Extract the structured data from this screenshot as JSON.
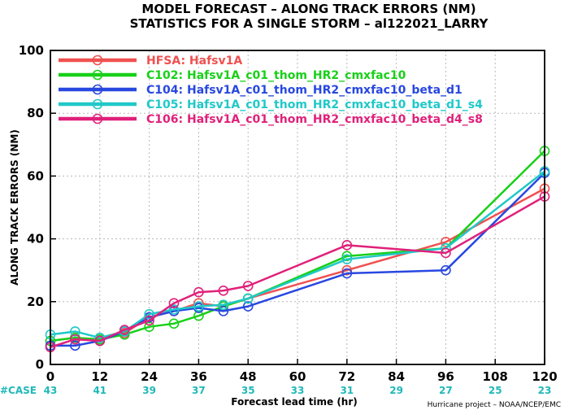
{
  "chart_data": {
    "type": "line",
    "title_line1": "MODEL FORECAST – ALONG TRACK ERRORS (NM)",
    "title_line2": "STATISTICS FOR A SINGLE STORM – al122021_LARRY",
    "xlabel": "Forecast lead time (hr)",
    "ylabel": "ALONG TRACK ERRORS (NM)",
    "xlim": [
      0,
      120
    ],
    "ylim": [
      0,
      100
    ],
    "x_ticks": [
      "0",
      "12",
      "24",
      "36",
      "48",
      "60",
      "72",
      "84",
      "96",
      "108",
      "120"
    ],
    "y_ticks": [
      "0",
      "20",
      "40",
      "60",
      "80",
      "100"
    ],
    "grid": true,
    "legend_position": "top-left",
    "case_label": "#CASE",
    "case_counts": [
      "43",
      "41",
      "39",
      "37",
      "35",
      "33",
      "31",
      "29",
      "27",
      "25",
      "23"
    ],
    "credit": "Hurricane project – NOAA/NCEP/EMC",
    "series": [
      {
        "name": "HFSA: Hafsv1A",
        "color": "#f05050",
        "x": [
          0,
          6,
          12,
          18,
          24,
          30,
          36,
          42,
          48,
          72,
          96,
          120
        ],
        "y": [
          7.5,
          8.5,
          8,
          10,
          15,
          17,
          19.5,
          18.5,
          21,
          30,
          39,
          56
        ]
      },
      {
        "name": "C102: Hafsv1A_c01_thom_HR2_cmxfac10",
        "color": "#18d018",
        "x": [
          0,
          6,
          12,
          18,
          24,
          30,
          36,
          42,
          48,
          72,
          96,
          120
        ],
        "y": [
          7.5,
          8.5,
          8,
          9.5,
          12,
          13,
          15.5,
          18.5,
          21,
          34.5,
          37,
          68
        ]
      },
      {
        "name": "C104: Hafsv1A_c01_thom_HR2_cmxfac10_beta_d1",
        "color": "#2848e0",
        "x": [
          0,
          6,
          12,
          18,
          24,
          30,
          36,
          42,
          48,
          72,
          96,
          120
        ],
        "y": [
          6,
          6,
          7.5,
          10.5,
          15,
          17,
          18,
          17,
          18.5,
          29,
          30,
          61
        ]
      },
      {
        "name": "C105: Hafsv1A_c01_thom_HR2_cmxfac10_beta_d1_s4",
        "color": "#20c8c8",
        "x": [
          0,
          6,
          12,
          18,
          24,
          30,
          36,
          42,
          48,
          72,
          96,
          120
        ],
        "y": [
          9.5,
          10.5,
          8.5,
          10.5,
          16,
          17.5,
          18.5,
          19,
          21,
          33.5,
          37,
          61.5
        ]
      },
      {
        "name": "C106: Hafsv1A_c01_thom_HR2_cmxfac10_beta_d4_s8",
        "color": "#e0207a",
        "x": [
          0,
          6,
          12,
          18,
          24,
          30,
          36,
          42,
          48,
          72,
          96,
          120
        ],
        "y": [
          5.5,
          8,
          7.5,
          11,
          14,
          19.5,
          23,
          23.5,
          25,
          38,
          35.5,
          53.5
        ]
      }
    ]
  }
}
